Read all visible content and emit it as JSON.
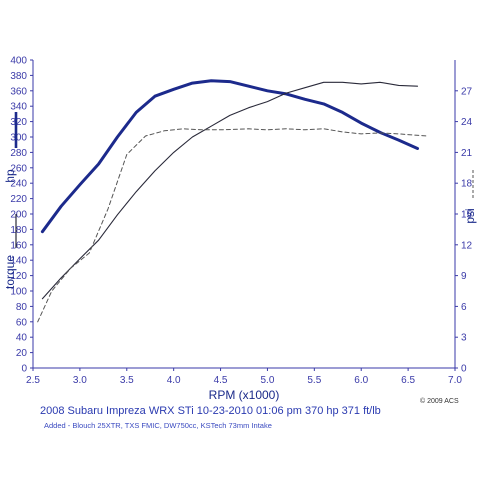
{
  "captions": {
    "title": "2008 Subaru Impreza WRX STi   10-23-2010  01:06 pm   370 hp 371 ft/lb",
    "mods": "Added - Blouch 25XTR, TXS FMIC, DW750cc, KSTech 73mm Intake",
    "copyright": "© 2009 ACS"
  },
  "chart_data": {
    "type": "line",
    "title": "",
    "xlabel": "RPM (x1000)",
    "ylabel_left": [
      "torque",
      "hp"
    ],
    "ylabel_right": "psi",
    "xlim": [
      2.5,
      7.0
    ],
    "x_ticks": [
      "2.5",
      "3.0",
      "3.5",
      "4.0",
      "4.5",
      "5.0",
      "5.5",
      "6.0",
      "6.5",
      "7.0"
    ],
    "ylim_left": [
      0,
      400
    ],
    "y_ticks_left": [
      "0",
      "20",
      "40",
      "60",
      "80",
      "100",
      "120",
      "140",
      "160",
      "180",
      "200",
      "220",
      "240",
      "260",
      "280",
      "300",
      "320",
      "340",
      "360",
      "380",
      "400"
    ],
    "ylim_right": [
      0,
      30
    ],
    "y_ticks_right": [
      "0",
      "3",
      "6",
      "9",
      "12",
      "15",
      "18",
      "21",
      "24",
      "27"
    ],
    "grid": false,
    "series": [
      {
        "name": "hp",
        "axis": "left",
        "color": "#1c2a8c",
        "style": "thick",
        "x": [
          2.6,
          2.8,
          3.0,
          3.2,
          3.4,
          3.6,
          3.8,
          4.0,
          4.2,
          4.4,
          4.6,
          4.8,
          5.0,
          5.2,
          5.4,
          5.6,
          5.8,
          6.0,
          6.2,
          6.4,
          6.6
        ],
        "y": [
          177,
          210,
          238,
          265,
          300,
          332,
          353,
          362,
          370,
          373,
          372,
          366,
          360,
          356,
          349,
          343,
          332,
          318,
          306,
          296,
          285
        ]
      },
      {
        "name": "torque",
        "axis": "left",
        "color": "#2a2a3a",
        "style": "thin",
        "x": [
          2.6,
          2.8,
          3.0,
          3.2,
          3.4,
          3.6,
          3.8,
          4.0,
          4.2,
          4.4,
          4.6,
          4.8,
          5.0,
          5.2,
          5.4,
          5.6,
          5.8,
          6.0,
          6.2,
          6.4,
          6.6
        ],
        "y": [
          90,
          117,
          142,
          166,
          199,
          229,
          256,
          280,
          300,
          314,
          328,
          338,
          346,
          357,
          364,
          371,
          371,
          369,
          371,
          367,
          366
        ]
      },
      {
        "name": "psi",
        "axis": "right",
        "color": "#555555",
        "style": "dashed",
        "x": [
          2.55,
          2.7,
          2.9,
          3.1,
          3.3,
          3.5,
          3.7,
          3.9,
          4.1,
          4.3,
          4.5,
          4.8,
          5.0,
          5.2,
          5.4,
          5.6,
          5.8,
          6.0,
          6.2,
          6.4,
          6.7
        ],
        "y": [
          4.5,
          7.5,
          9.7,
          11.2,
          15.5,
          20.8,
          22.6,
          23.1,
          23.3,
          23.2,
          23.2,
          23.3,
          23.2,
          23.3,
          23.2,
          23.3,
          23.0,
          22.8,
          22.9,
          22.8,
          22.6
        ]
      }
    ]
  }
}
